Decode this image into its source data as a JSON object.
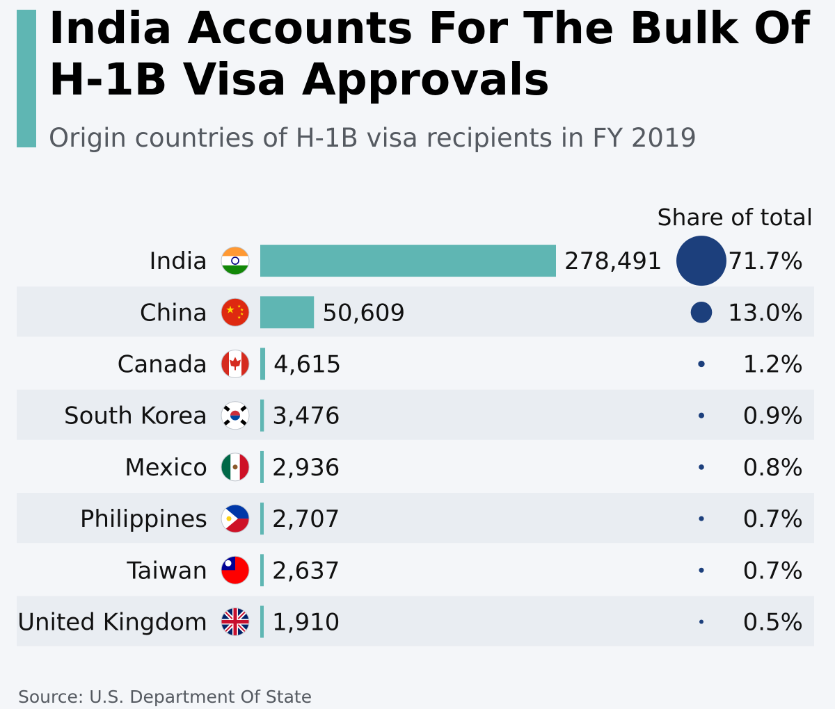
{
  "header": {
    "title": "India Accounts For The Bulk Of H-1B Visa Approvals",
    "subtitle": "Origin countries of H-1B visa recipients in FY 2019",
    "share_header": "Share of total"
  },
  "footer": {
    "source": "Source: U.S. Department Of State"
  },
  "colors": {
    "bar": "#5fb6b3",
    "dot": "#1c3f7c",
    "stripe": "#e9edf2",
    "background": "#f4f6f9",
    "accent": "#5fb6b3"
  },
  "chart_data": {
    "type": "bar",
    "orientation": "horizontal",
    "title": "India Accounts For The Bulk Of H-1B Visa Approvals",
    "subtitle": "Origin countries of H-1B visa recipients in FY 2019",
    "categories": [
      "India",
      "China",
      "Canada",
      "South Korea",
      "Mexico",
      "Philippines",
      "Taiwan",
      "United Kingdom"
    ],
    "values": [
      278491,
      50609,
      4615,
      3476,
      2936,
      2707,
      2637,
      1910
    ],
    "value_labels": [
      "278,491",
      "50,609",
      "4,615",
      "3,476",
      "2,936",
      "2,707",
      "2,637",
      "1,910"
    ],
    "share_of_total": [
      71.7,
      13.0,
      1.2,
      0.9,
      0.8,
      0.7,
      0.7,
      0.5
    ],
    "share_labels": [
      "71.7%",
      "13.0%",
      "1.2%",
      "0.9%",
      "0.8%",
      "0.7%",
      "0.7%",
      "0.5%"
    ],
    "flag_icons": [
      "india-flag-icon",
      "china-flag-icon",
      "canada-flag-icon",
      "south-korea-flag-icon",
      "mexico-flag-icon",
      "philippines-flag-icon",
      "taiwan-flag-icon",
      "united-kingdom-flag-icon"
    ],
    "grid": false,
    "legend": "none"
  }
}
